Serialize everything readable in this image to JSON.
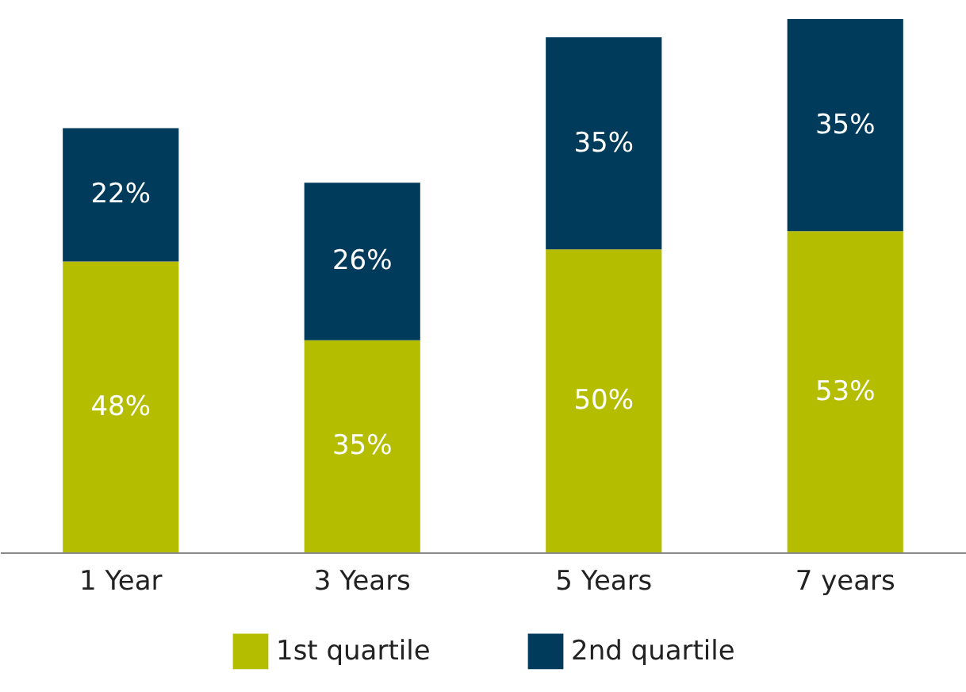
{
  "chart_data": {
    "type": "bar",
    "stacked": true,
    "legend": "bottom",
    "grid": false,
    "categories": [
      "1 Year",
      "3 Years",
      "5 Years",
      "7 years"
    ],
    "series": [
      {
        "name": "1st quartile",
        "color": "#b5bd00",
        "values": [
          48,
          35,
          50,
          53
        ],
        "value_labels": [
          "48%",
          "35%",
          "50%",
          "53%"
        ]
      },
      {
        "name": "2nd quartile",
        "color": "#003b5c",
        "values": [
          22,
          26,
          35,
          35
        ],
        "value_labels": [
          "22%",
          "26%",
          "35%",
          "35%"
        ]
      }
    ]
  }
}
